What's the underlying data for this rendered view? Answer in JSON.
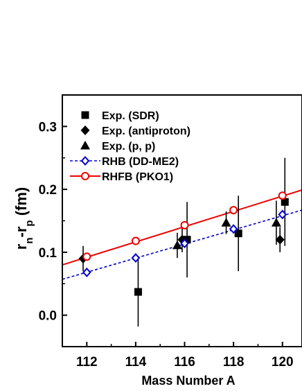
{
  "chart_data": {
    "type": "scatter",
    "xlabel": "Mass Number A",
    "ylabel_main": "r",
    "ylabel_sub_n": "n",
    "ylabel_mid": "-r",
    "ylabel_sub_p": "p",
    "ylabel_unit": " (fm)",
    "xlim": [
      111.0,
      120.8
    ],
    "ylim": [
      -0.05,
      0.35
    ],
    "x_ticks": [
      112,
      114,
      116,
      118,
      120
    ],
    "x_tick_labels": [
      "112",
      "114",
      "116",
      "118",
      "120"
    ],
    "y_ticks": [
      0.0,
      0.1,
      0.2,
      0.3
    ],
    "y_tick_labels": [
      "0.0",
      "0.1",
      "0.2",
      "0.3"
    ],
    "grid": false,
    "legend_position": "top-left",
    "series": [
      {
        "name": "Exp. (SDR)",
        "marker": "square-filled",
        "color": "#000000",
        "points": [
          {
            "x": 114.1,
            "y": 0.037,
            "err_low": 0.055,
            "err_high": 0.055
          },
          {
            "x": 116.1,
            "y": 0.12,
            "err_low": 0.06,
            "err_high": 0.06
          },
          {
            "x": 118.2,
            "y": 0.13,
            "err_low": 0.06,
            "err_high": 0.06
          },
          {
            "x": 120.1,
            "y": 0.18,
            "err_low": 0.07,
            "err_high": 0.07
          }
        ]
      },
      {
        "name": "Exp. (antiproton)",
        "marker": "diamond-filled",
        "color": "#000000",
        "points": [
          {
            "x": 111.85,
            "y": 0.09,
            "err_low": 0.02,
            "err_high": 0.02
          },
          {
            "x": 115.9,
            "y": 0.12,
            "err_low": 0.02,
            "err_high": 0.02
          },
          {
            "x": 119.9,
            "y": 0.12,
            "err_low": 0.02,
            "err_high": 0.02
          }
        ]
      },
      {
        "name": "Exp. (p, p)",
        "marker": "triangle-filled",
        "color": "#000000",
        "points": [
          {
            "x": 115.7,
            "y": 0.111,
            "err_low": 0.02,
            "err_high": 0.02
          },
          {
            "x": 117.7,
            "y": 0.147,
            "err_low": 0.018,
            "err_high": 0.018
          },
          {
            "x": 119.75,
            "y": 0.147,
            "err_low": 0.035,
            "err_high": 0.035
          }
        ]
      },
      {
        "name": "RHB (DD-ME2)",
        "marker": "diamond-open",
        "color": "#0000cc",
        "line_style": "dashed",
        "line": [
          [
            111.0,
            0.057
          ],
          [
            120.8,
            0.167
          ]
        ],
        "points": [
          {
            "x": 112,
            "y": 0.068
          },
          {
            "x": 114,
            "y": 0.091
          },
          {
            "x": 116,
            "y": 0.114
          },
          {
            "x": 118,
            "y": 0.137
          },
          {
            "x": 120,
            "y": 0.16
          }
        ]
      },
      {
        "name": "RHFB (PKO1)",
        "marker": "circle-open",
        "color": "#ee0000",
        "line_style": "solid",
        "line": [
          [
            111.0,
            0.08
          ],
          [
            120.8,
            0.199
          ]
        ],
        "points": [
          {
            "x": 112,
            "y": 0.093
          },
          {
            "x": 114,
            "y": 0.118
          },
          {
            "x": 116,
            "y": 0.143
          },
          {
            "x": 118,
            "y": 0.167
          },
          {
            "x": 120,
            "y": 0.19
          }
        ]
      }
    ]
  }
}
